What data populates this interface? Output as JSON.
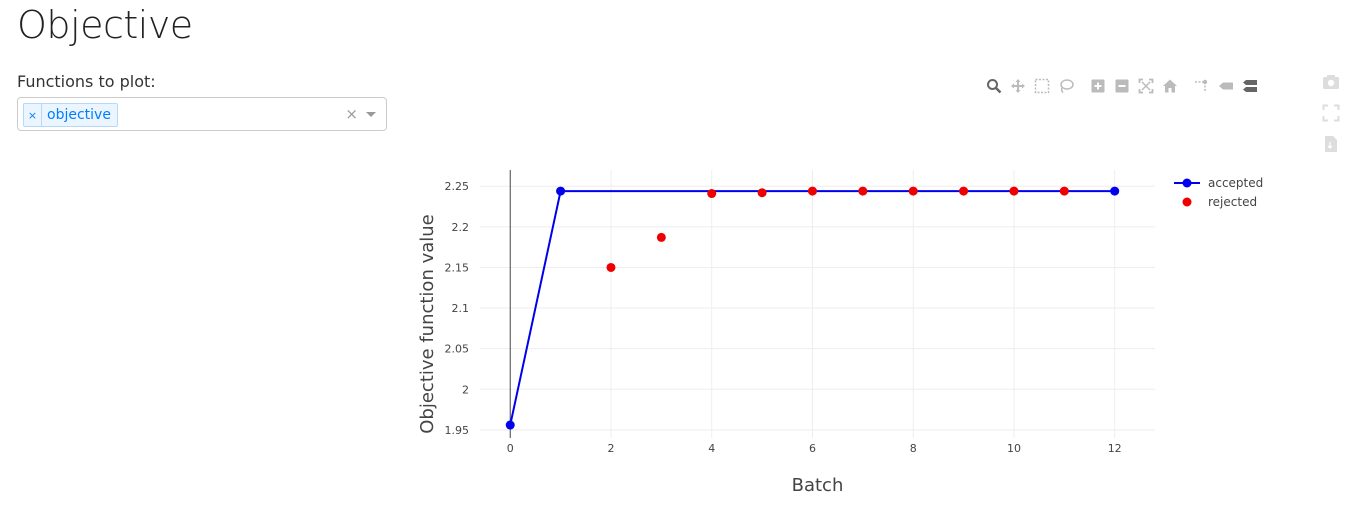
{
  "page": {
    "title": "Objective",
    "functions_label": "Functions to plot:",
    "selected_functions": [
      "objective"
    ],
    "tag_remove_glyph": "×",
    "clear_glyph": "×"
  },
  "toolbar": {
    "icons": [
      "zoom-icon",
      "pan-icon",
      "box-select-icon",
      "lasso-select-icon",
      "zoom-in-icon",
      "zoom-out-icon",
      "autoscale-icon",
      "reset-axes-icon",
      "spike-lines-icon",
      "hover-closest-icon",
      "hover-compare-icon"
    ],
    "active": "zoom-icon",
    "side_icons": [
      "camera-icon",
      "fullscreen-icon",
      "export-icon"
    ]
  },
  "chart_data": {
    "type": "line",
    "title": "",
    "xlabel": "Batch",
    "ylabel": "Objective function value",
    "xlim": [
      -0.6,
      12.8
    ],
    "ylim": [
      1.94,
      2.27
    ],
    "x_ticks": [
      0,
      2,
      4,
      6,
      8,
      10,
      12
    ],
    "y_ticks": [
      1.95,
      2,
      2.05,
      2.1,
      2.15,
      2.2,
      2.25
    ],
    "y_tick_labels": [
      "1.95",
      "2",
      "2.05",
      "2.1",
      "2.15",
      "2.2",
      "2.25"
    ],
    "grid": true,
    "legend_position": "top-right",
    "series": [
      {
        "name": "accepted",
        "mode": "lines+markers",
        "color": "#0000ee",
        "x": [
          0,
          1,
          12
        ],
        "y": [
          1.956,
          2.244,
          2.244
        ]
      },
      {
        "name": "rejected",
        "mode": "markers",
        "color": "#ee0000",
        "x": [
          2,
          3,
          4,
          5,
          6,
          7,
          8,
          9,
          10,
          11
        ],
        "y": [
          2.15,
          2.187,
          2.241,
          2.242,
          2.244,
          2.244,
          2.244,
          2.244,
          2.244,
          2.244
        ]
      }
    ]
  }
}
